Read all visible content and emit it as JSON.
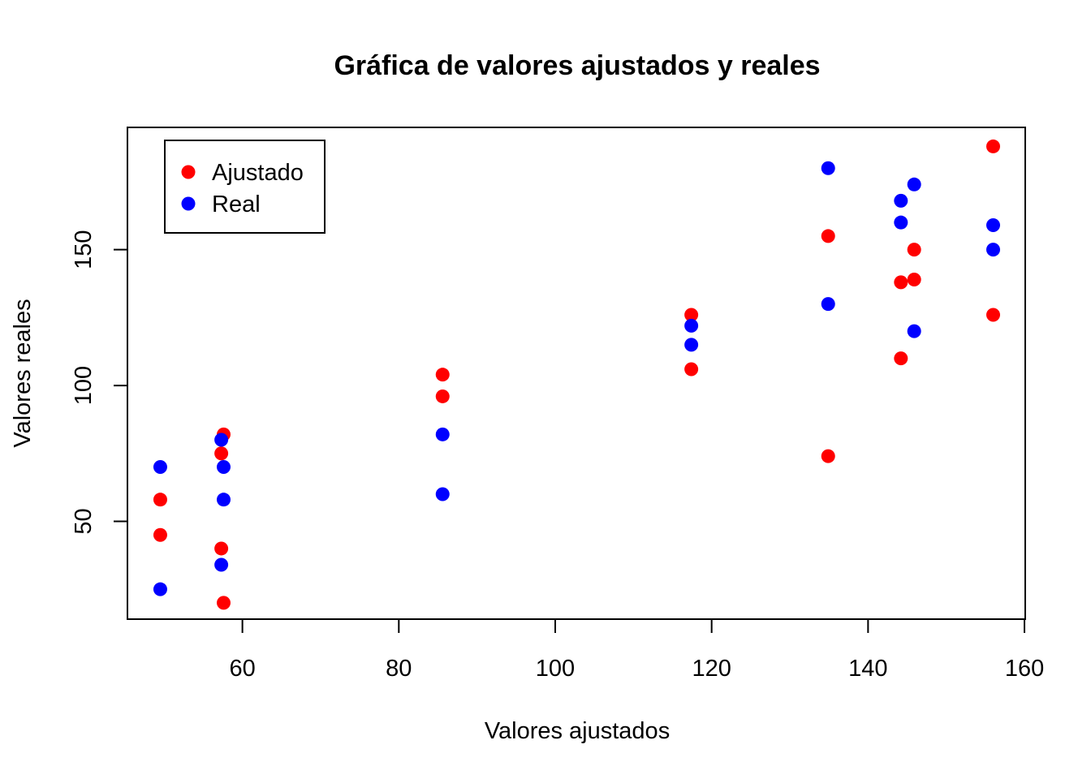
{
  "chart_data": {
    "type": "scatter",
    "title": "Gráfica de valores ajustados y reales",
    "xlabel": "Valores ajustados",
    "ylabel": "Valores reales",
    "xlim": [
      45.3,
      160.1
    ],
    "ylim": [
      14,
      195
    ],
    "x_ticks": [
      {
        "value": 60,
        "label": "60"
      },
      {
        "value": 80,
        "label": "80"
      },
      {
        "value": 100,
        "label": "100"
      },
      {
        "value": 120,
        "label": "120"
      },
      {
        "value": 140,
        "label": "140"
      },
      {
        "value": 160,
        "label": "160"
      }
    ],
    "y_ticks": [
      {
        "value": 50,
        "label": "50"
      },
      {
        "value": 100,
        "label": "100"
      },
      {
        "value": 150,
        "label": "150"
      }
    ],
    "legend_position": "top-left",
    "series": [
      {
        "name": "Ajustado",
        "color": "#ff0000",
        "points": [
          {
            "x": 49.5,
            "y": 58
          },
          {
            "x": 49.5,
            "y": 45
          },
          {
            "x": 57.6,
            "y": 82
          },
          {
            "x": 57.3,
            "y": 75
          },
          {
            "x": 57.3,
            "y": 40
          },
          {
            "x": 57.6,
            "y": 20
          },
          {
            "x": 85.6,
            "y": 104
          },
          {
            "x": 85.6,
            "y": 96
          },
          {
            "x": 117.4,
            "y": 126
          },
          {
            "x": 117.4,
            "y": 106
          },
          {
            "x": 134.9,
            "y": 155
          },
          {
            "x": 134.9,
            "y": 74
          },
          {
            "x": 144.2,
            "y": 138
          },
          {
            "x": 144.2,
            "y": 110
          },
          {
            "x": 145.9,
            "y": 150
          },
          {
            "x": 145.9,
            "y": 139
          },
          {
            "x": 156,
            "y": 188
          },
          {
            "x": 156,
            "y": 126
          }
        ]
      },
      {
        "name": "Real",
        "color": "#0000ff",
        "points": [
          {
            "x": 49.5,
            "y": 70
          },
          {
            "x": 49.5,
            "y": 25
          },
          {
            "x": 57.3,
            "y": 80
          },
          {
            "x": 57.6,
            "y": 70
          },
          {
            "x": 57.6,
            "y": 58
          },
          {
            "x": 57.3,
            "y": 34
          },
          {
            "x": 85.6,
            "y": 82
          },
          {
            "x": 85.6,
            "y": 60
          },
          {
            "x": 117.4,
            "y": 122
          },
          {
            "x": 117.4,
            "y": 115
          },
          {
            "x": 134.9,
            "y": 180
          },
          {
            "x": 134.9,
            "y": 130
          },
          {
            "x": 144.2,
            "y": 168
          },
          {
            "x": 144.2,
            "y": 160
          },
          {
            "x": 145.9,
            "y": 174
          },
          {
            "x": 145.9,
            "y": 120
          },
          {
            "x": 156,
            "y": 159
          },
          {
            "x": 156,
            "y": 150
          }
        ]
      }
    ]
  }
}
